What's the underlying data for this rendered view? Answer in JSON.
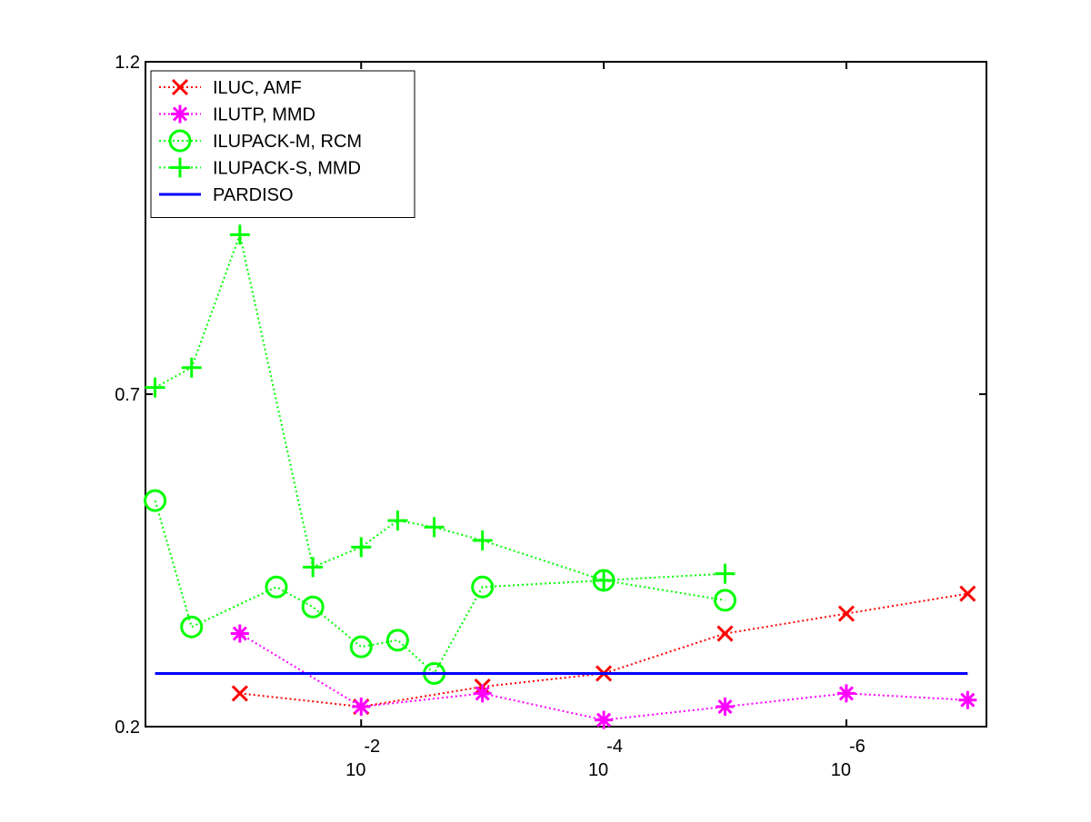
{
  "chart_data": {
    "type": "line",
    "xscale": "log",
    "xlim": [
      0.6,
      7e-08
    ],
    "ylim": [
      0.2,
      1.2
    ],
    "xticks": [
      {
        "value": 0.01,
        "label": "10",
        "superscript": "-2"
      },
      {
        "value": 0.0001,
        "label": "10",
        "superscript": "-4"
      },
      {
        "value": 1e-06,
        "label": "10",
        "superscript": "-6"
      }
    ],
    "yticks": [
      0.2,
      0.7,
      1.2
    ],
    "legend": "upper left",
    "series": [
      {
        "name": "ILUC, AMF",
        "color": "#ff0000",
        "marker": "x",
        "linestyle": "dotted",
        "x": [
          0.1,
          0.01,
          0.001,
          0.0001,
          1e-05,
          1e-06,
          1e-07
        ],
        "values": [
          0.25,
          0.23,
          0.26,
          0.28,
          0.34,
          0.37,
          0.4
        ]
      },
      {
        "name": "ILUTP, MMD",
        "color": "#ff00ff",
        "marker": "asterisk",
        "linestyle": "dotted",
        "x": [
          0.1,
          0.01,
          0.001,
          0.0001,
          1e-05,
          1e-06,
          1e-07
        ],
        "values": [
          0.34,
          0.23,
          0.25,
          0.21,
          0.23,
          0.25,
          0.24
        ]
      },
      {
        "name": "ILUPACK-M, RCM",
        "color": "#00ff00",
        "marker": "circle",
        "linestyle": "dotted",
        "x": [
          0.5,
          0.25,
          0.05,
          0.025,
          0.01,
          0.005,
          0.0025,
          0.001,
          0.0001,
          1e-05
        ],
        "values": [
          0.54,
          0.35,
          0.41,
          0.38,
          0.32,
          0.33,
          0.28,
          0.41,
          0.42,
          0.39
        ]
      },
      {
        "name": "ILUPACK-S, MMD",
        "color": "#00ff00",
        "marker": "plus",
        "linestyle": "dotted",
        "x": [
          0.5,
          0.25,
          0.1,
          0.025,
          0.01,
          0.005,
          0.0025,
          0.001,
          0.0001,
          1e-05
        ],
        "values": [
          0.71,
          0.74,
          0.94,
          0.44,
          0.47,
          0.51,
          0.5,
          0.48,
          0.42,
          0.43
        ]
      },
      {
        "name": "PARDISO",
        "color": "#0000ff",
        "marker": "none",
        "linestyle": "solid",
        "x": [
          0.5,
          1e-07
        ],
        "values": [
          0.28,
          0.28
        ]
      }
    ]
  }
}
